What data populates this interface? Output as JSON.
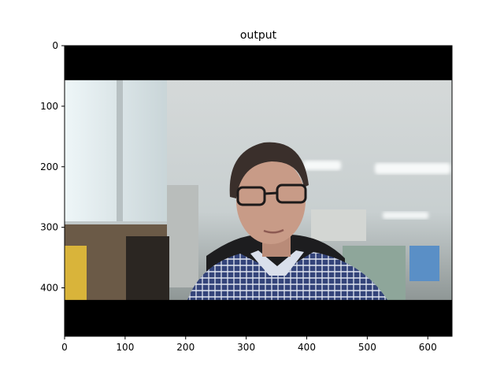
{
  "chart_data": {
    "type": "image",
    "title": "output",
    "image_width": 640,
    "image_height": 480,
    "xlim": [
      0,
      640
    ],
    "ylim": [
      480,
      0
    ],
    "x_ticks": [
      0,
      100,
      200,
      300,
      400,
      500,
      600
    ],
    "y_ticks": [
      0,
      100,
      200,
      300,
      400
    ],
    "x_tick_labels": [
      "0",
      "100",
      "200",
      "300",
      "400",
      "500",
      "600"
    ],
    "y_tick_labels": [
      "0",
      "100",
      "200",
      "300",
      "400"
    ],
    "letterbox_bands": [
      {
        "from_row": 0,
        "to_row": 57
      },
      {
        "from_row": 420,
        "to_row": 480
      }
    ],
    "colors": {
      "letterbox": "#000000",
      "ceiling": "#d8dcdc",
      "window": "#e6f0f4",
      "shirt": "#3c4a78",
      "skin": "#c79a86",
      "hair": "#3a2f2b"
    }
  }
}
